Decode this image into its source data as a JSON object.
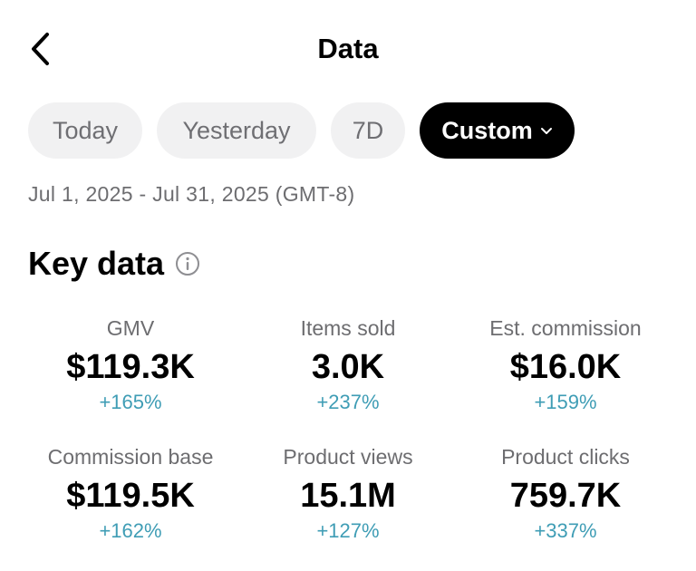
{
  "header": {
    "title": "Data",
    "back_icon": "chevron-left-icon"
  },
  "filters": {
    "chips": [
      {
        "label": "Today",
        "selected": false
      },
      {
        "label": "Yesterday",
        "selected": false
      },
      {
        "label": "7D",
        "selected": false
      },
      {
        "label": "Custom",
        "selected": true
      }
    ],
    "date_range": "Jul 1, 2025 - Jul 31, 2025 (GMT-8)"
  },
  "key_data": {
    "title": "Key data",
    "info_icon": "info-icon",
    "metrics": [
      {
        "label": "GMV",
        "value": "$119.3K",
        "change": "+165%"
      },
      {
        "label": "Items sold",
        "value": "3.0K",
        "change": "+237%"
      },
      {
        "label": "Est. commission",
        "value": "$16.0K",
        "change": "+159%"
      },
      {
        "label": "Commission base",
        "value": "$119.5K",
        "change": "+162%"
      },
      {
        "label": "Product views",
        "value": "15.1M",
        "change": "+127%"
      },
      {
        "label": "Product clicks",
        "value": "759.7K",
        "change": "+337%"
      }
    ]
  },
  "colors": {
    "accent_change": "#3f9db5",
    "selected_chip": "#000000",
    "chip_bg": "#f1f1f2",
    "muted_text": "#6d6d70"
  }
}
